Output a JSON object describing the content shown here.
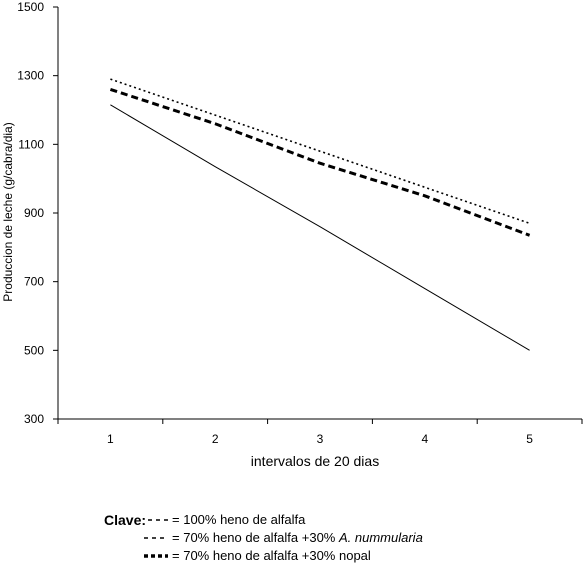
{
  "chart_data": {
    "type": "line",
    "x": [
      1,
      2,
      3,
      4,
      5
    ],
    "xlabel": "intervalos de 20 dias",
    "ylabel": "Produccion de leche (g/cabra/dia)",
    "xlim": [
      0.5,
      5.5
    ],
    "ylim": [
      300,
      1500
    ],
    "yticks": [
      300,
      500,
      700,
      900,
      1100,
      1300,
      1500
    ],
    "xticks": [
      1,
      2,
      3,
      4,
      5
    ],
    "series": [
      {
        "name": "100% heno de alfalfa",
        "style": "solid",
        "values": [
          1215,
          1035,
          860,
          680,
          500
        ]
      },
      {
        "name": "70% heno de alfalfa +30% A. nummularia",
        "style": "dotted",
        "values": [
          1290,
          1185,
          1080,
          975,
          870
        ]
      },
      {
        "name": "70% heno de alfalfa +30% nopal",
        "style": "dashed",
        "values": [
          1260,
          1160,
          1045,
          950,
          835
        ]
      }
    ],
    "grid": false
  },
  "legend": {
    "title": "Clave:",
    "items": [
      {
        "prefix": "= ",
        "text": "100% heno de alfalfa",
        "italic": ""
      },
      {
        "prefix": "= ",
        "text": "70% heno de alfalfa +30% ",
        "italic": "A. nummularia"
      },
      {
        "prefix": "= ",
        "text": "70% heno de alfalfa +30% nopal",
        "italic": ""
      }
    ]
  }
}
